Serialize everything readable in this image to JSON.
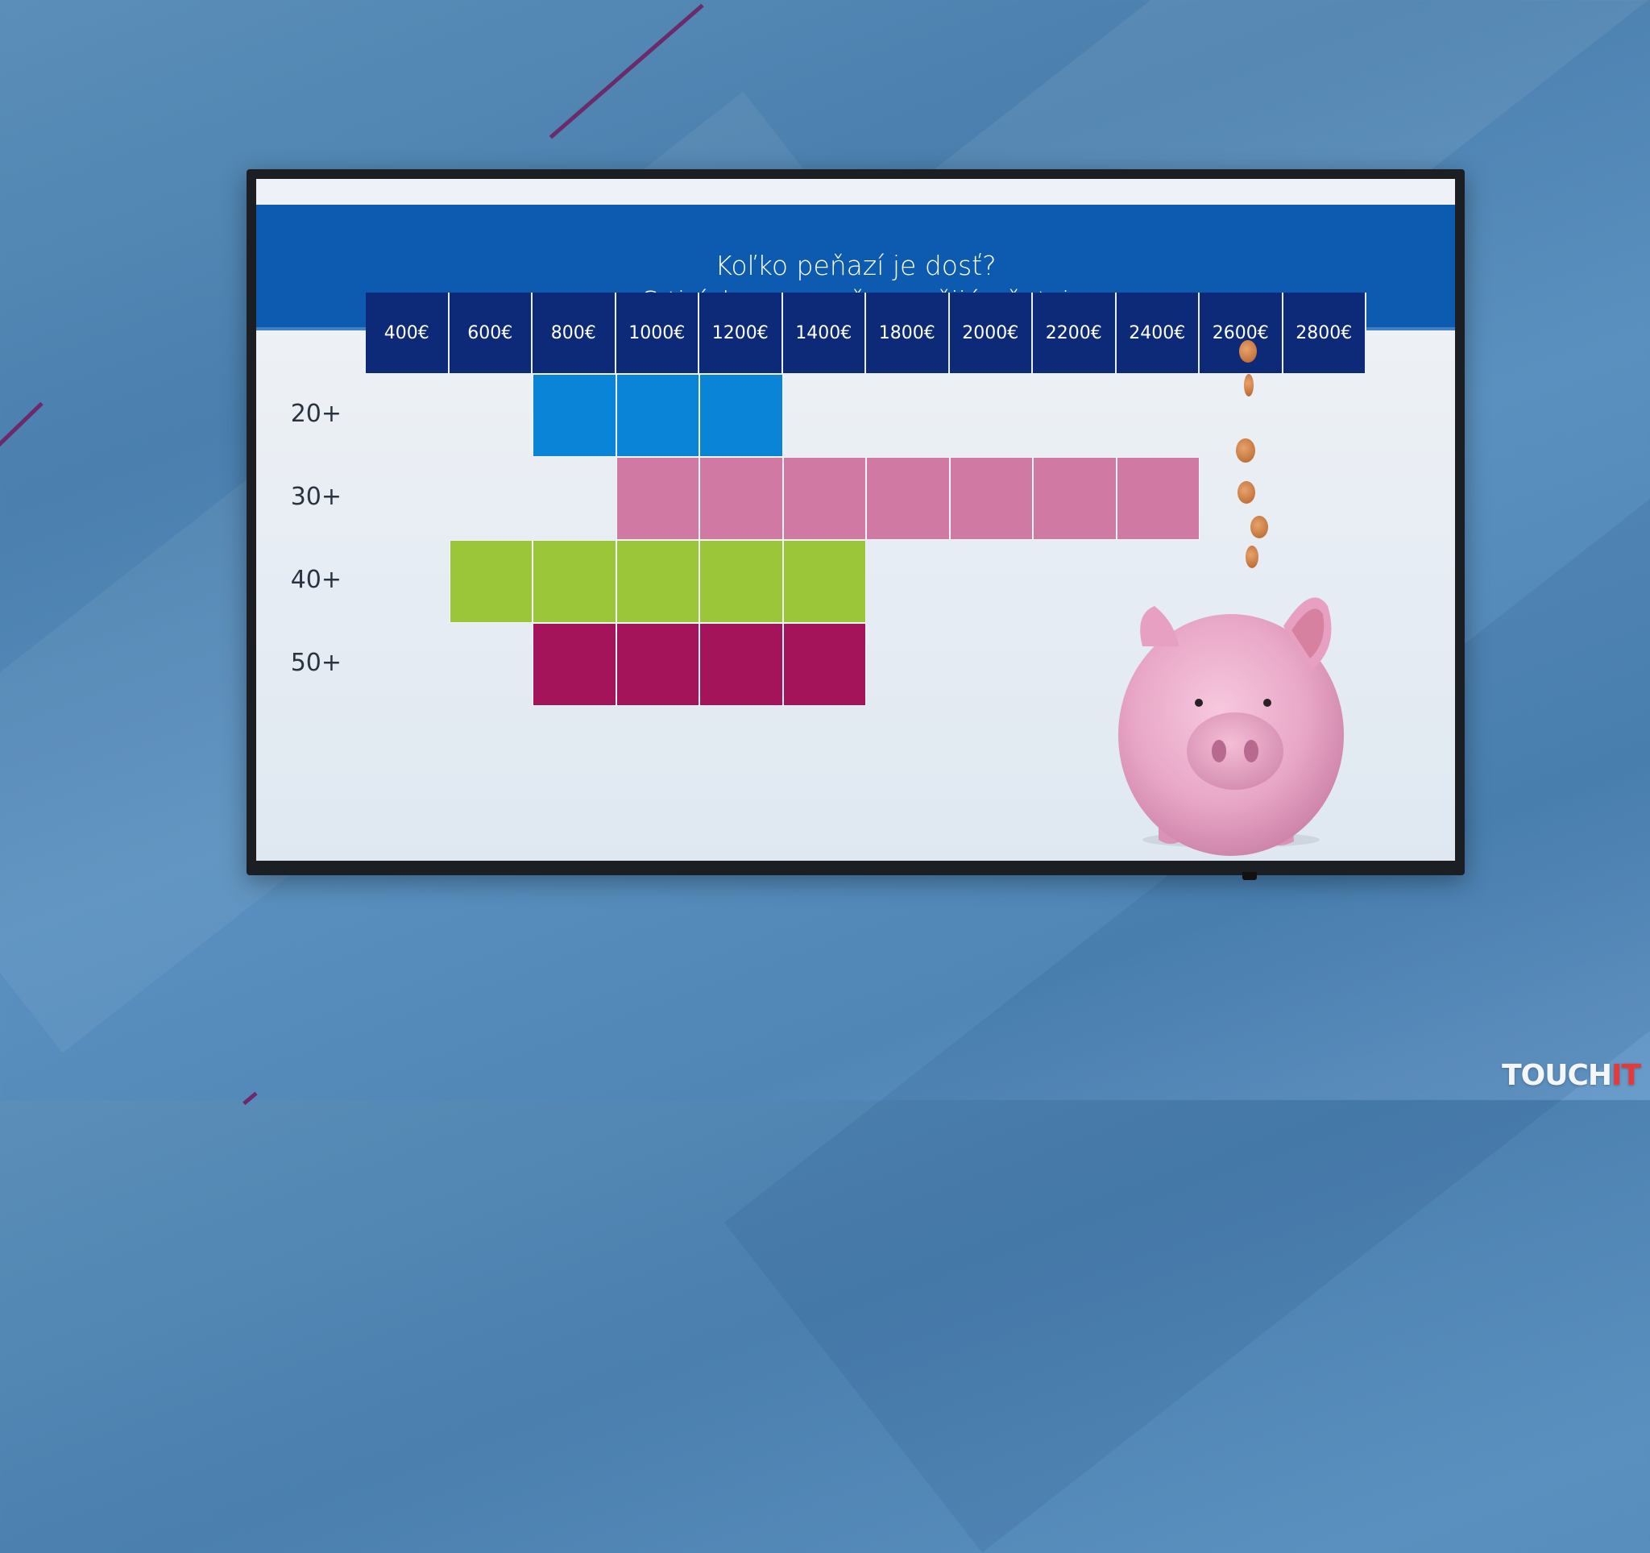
{
  "screen": {
    "title_line1": "Koľko peňazí je dosť?",
    "title_line2": "S tisíckou mesačne vyžijú všetci"
  },
  "chart_data": {
    "type": "table",
    "title": "Koľko peňazí je dosť? S tisíckou mesačne vyžijú všetci",
    "columns": [
      "400€",
      "600€",
      "800€",
      "1000€",
      "1200€",
      "1400€",
      "1800€",
      "2000€",
      "2200€",
      "2400€",
      "2600€",
      "2800€"
    ],
    "rows": [
      {
        "label": "20+",
        "color": "#0a84d6",
        "from": "800€",
        "to": "1200€"
      },
      {
        "label": "30+",
        "color": "#d07aa3",
        "from": "1000€",
        "to": "2400€"
      },
      {
        "label": "40+",
        "color": "#9cc63a",
        "from": "600€",
        "to": "1400€"
      },
      {
        "label": "50+",
        "color": "#a3145a",
        "from": "800€",
        "to": "1400€"
      }
    ],
    "header_color": "#0c2a78",
    "title_band_color": "#0d5bb0"
  },
  "watermark": {
    "text_main": "TOUCH",
    "text_accent": "IT"
  }
}
